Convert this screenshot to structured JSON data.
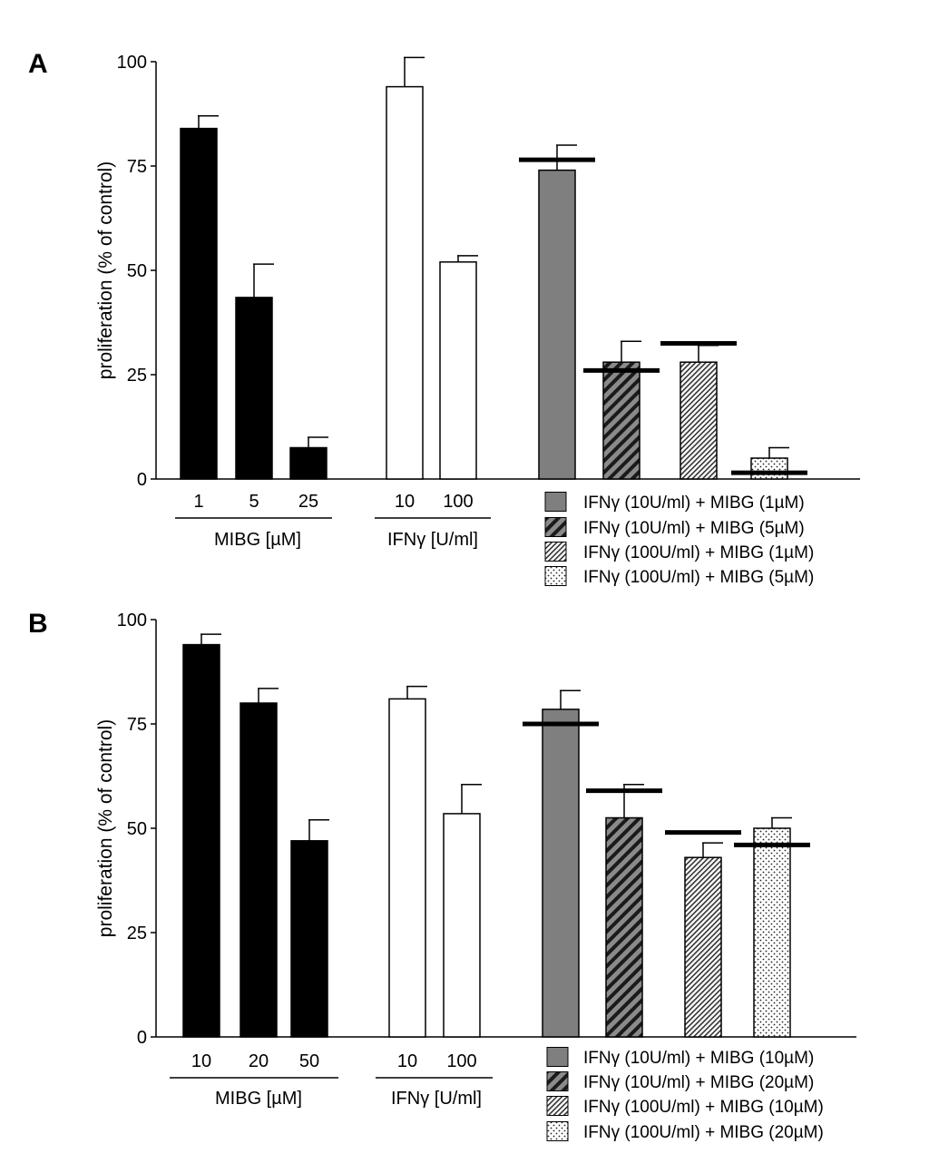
{
  "chart_data": [
    {
      "type": "bar",
      "panel_label": "A",
      "ylabel": "proliferation (% of control)",
      "ylim": [
        0,
        100
      ],
      "yticks": [
        "0",
        "25",
        "50",
        "75",
        "100"
      ],
      "groups": [
        {
          "name": "MIBG [µM]",
          "categories": [
            "1",
            "5",
            "25"
          ],
          "values": [
            84,
            43.5,
            7.5
          ],
          "errors": [
            3,
            8,
            2.5
          ],
          "pattern": "black"
        },
        {
          "name": "IFNγ [U/ml]",
          "categories": [
            "10",
            "100"
          ],
          "values": [
            94,
            52
          ],
          "errors": [
            7,
            1.5
          ],
          "pattern": "white"
        },
        {
          "name": "",
          "categories": [
            "",
            "",
            "",
            ""
          ],
          "values": [
            74,
            28,
            28,
            5
          ],
          "errors": [
            6,
            5,
            4,
            2.5
          ],
          "expected": [
            76.5,
            26,
            32.5,
            1.5
          ],
          "patterns": [
            "gray",
            "diag",
            "fine",
            "dots"
          ]
        }
      ],
      "legend": [
        {
          "label": "IFNγ (10U/ml) + MIBG (1µM)",
          "pattern": "gray"
        },
        {
          "label": "IFNγ (10U/ml) + MIBG (5µM)",
          "pattern": "diag"
        },
        {
          "label": "IFNγ (100U/ml) + MIBG (1µM)",
          "pattern": "fine"
        },
        {
          "label": "IFNγ (100U/ml) + MIBG (5µM)",
          "pattern": "dots"
        }
      ]
    },
    {
      "type": "bar",
      "panel_label": "B",
      "ylabel": "proliferation (% of control)",
      "ylim": [
        0,
        100
      ],
      "yticks": [
        "0",
        "25",
        "50",
        "75",
        "100"
      ],
      "groups": [
        {
          "name": "MIBG [µM]",
          "categories": [
            "10",
            "20",
            "50"
          ],
          "values": [
            94,
            80,
            47
          ],
          "errors": [
            2.5,
            3.5,
            5
          ],
          "pattern": "black"
        },
        {
          "name": "IFNγ [U/ml]",
          "categories": [
            "10",
            "100"
          ],
          "values": [
            81,
            53.5
          ],
          "errors": [
            3,
            7
          ],
          "pattern": "white"
        },
        {
          "name": "",
          "categories": [
            "",
            "",
            "",
            ""
          ],
          "values": [
            78.5,
            52.5,
            43,
            50
          ],
          "errors": [
            4.5,
            8,
            3.5,
            2.5
          ],
          "expected": [
            75,
            59,
            49,
            46
          ],
          "patterns": [
            "gray",
            "diag",
            "fine",
            "dots"
          ]
        }
      ],
      "legend": [
        {
          "label": "IFNγ (10U/ml) + MIBG (10µM)",
          "pattern": "gray"
        },
        {
          "label": "IFNγ (10U/ml) + MIBG (20µM)",
          "pattern": "diag"
        },
        {
          "label": "IFNγ (100U/ml) + MIBG (10µM)",
          "pattern": "fine"
        },
        {
          "label": "IFNγ (100U/ml) + MIBG (20µM)",
          "pattern": "dots"
        }
      ]
    }
  ]
}
